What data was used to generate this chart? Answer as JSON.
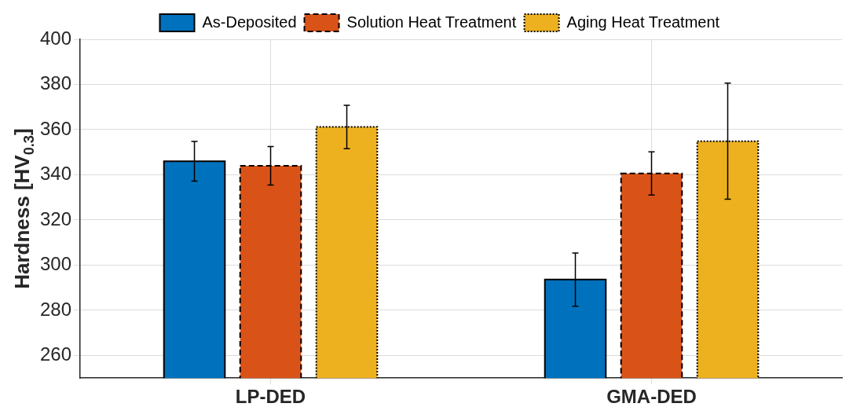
{
  "chart_data": {
    "type": "bar",
    "ylabel": "Hardness [HV$_{0.3}$]",
    "categories": [
      "LP-DED",
      "GMA-DED"
    ],
    "series": [
      {
        "name": "As-Deposited",
        "color": "#0072bd",
        "line_style": "solid",
        "values": [
          346,
          293.6
        ],
        "errors": [
          8.8,
          11.8
        ]
      },
      {
        "name": "Solution Heat Treatment",
        "color": "#d95319",
        "line_style": "dashed",
        "values": [
          344,
          340.6
        ],
        "errors": [
          8.5,
          9.6
        ]
      },
      {
        "name": "Aging Heat Treatment",
        "color": "#edb120",
        "line_style": "dotted",
        "values": [
          361.2,
          354.9
        ],
        "errors": [
          9.6,
          25.7
        ]
      }
    ],
    "ylim": [
      250,
      400
    ],
    "yticks": [
      260,
      280,
      300,
      320,
      340,
      360,
      380,
      400
    ],
    "grid": true,
    "legend": "top"
  }
}
